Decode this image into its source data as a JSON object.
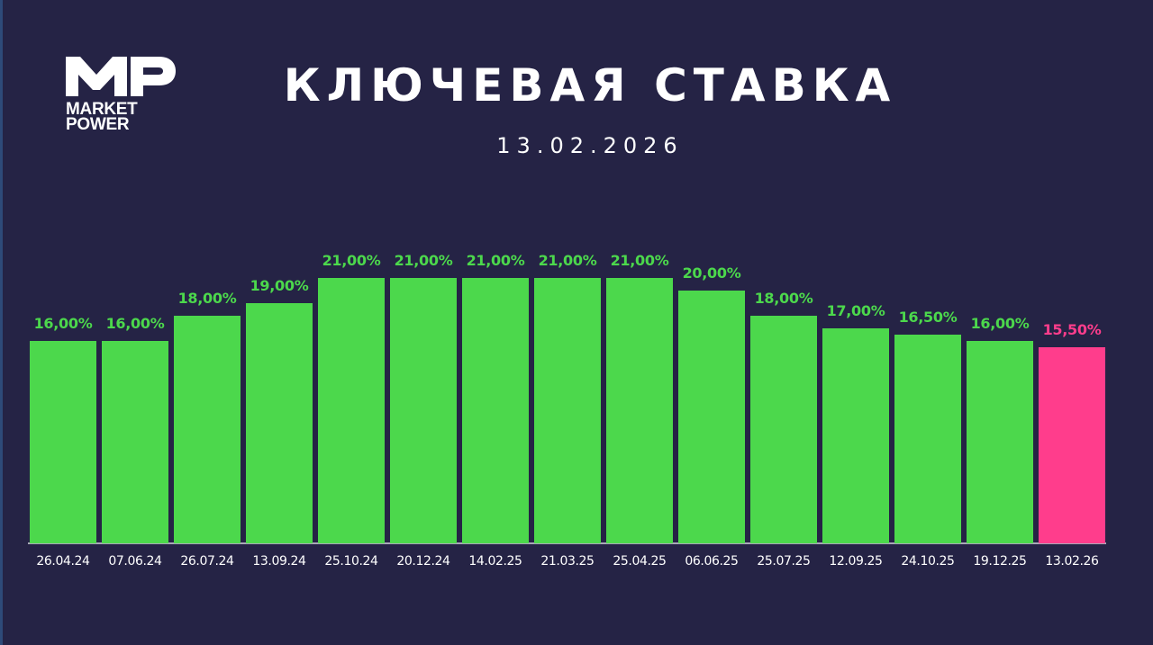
{
  "brand": {
    "logo_mark": "MP",
    "logo_line1": "MARKET",
    "logo_line2": "POWER"
  },
  "header": {
    "title": "КЛЮЧЕВАЯ СТАВКА",
    "date": "13.02.2026"
  },
  "colors": {
    "background": "#252345",
    "bar": "#4cd84c",
    "highlight": "#ff3d8c",
    "text": "#ffffff"
  },
  "chart_data": {
    "type": "bar",
    "title": "КЛЮЧЕВАЯ СТАВКА",
    "subtitle": "13.02.2026",
    "xlabel": "",
    "ylabel": "",
    "ylim": [
      0,
      22
    ],
    "grid": false,
    "legend": null,
    "categories": [
      "26.04.24",
      "07.06.24",
      "26.07.24",
      "13.09.24",
      "25.10.24",
      "20.12.24",
      "14.02.25",
      "21.03.25",
      "25.04.25",
      "06.06.25",
      "25.07.25",
      "12.09.25",
      "24.10.25",
      "19.12.25",
      "13.02.26"
    ],
    "values": [
      16.0,
      16.0,
      18.0,
      19.0,
      21.0,
      21.0,
      21.0,
      21.0,
      21.0,
      20.0,
      18.0,
      17.0,
      16.5,
      16.0,
      15.5
    ],
    "labels": [
      "16,00%",
      "16,00%",
      "18,00%",
      "19,00%",
      "21,00%",
      "21,00%",
      "21,00%",
      "21,00%",
      "21,00%",
      "20,00%",
      "18,00%",
      "17,00%",
      "16,50%",
      "16,00%",
      "15,50%"
    ],
    "highlighted_index": 14,
    "annotations": [
      "Last bar (13.02.26, 15,50%) highlighted in pink"
    ]
  }
}
